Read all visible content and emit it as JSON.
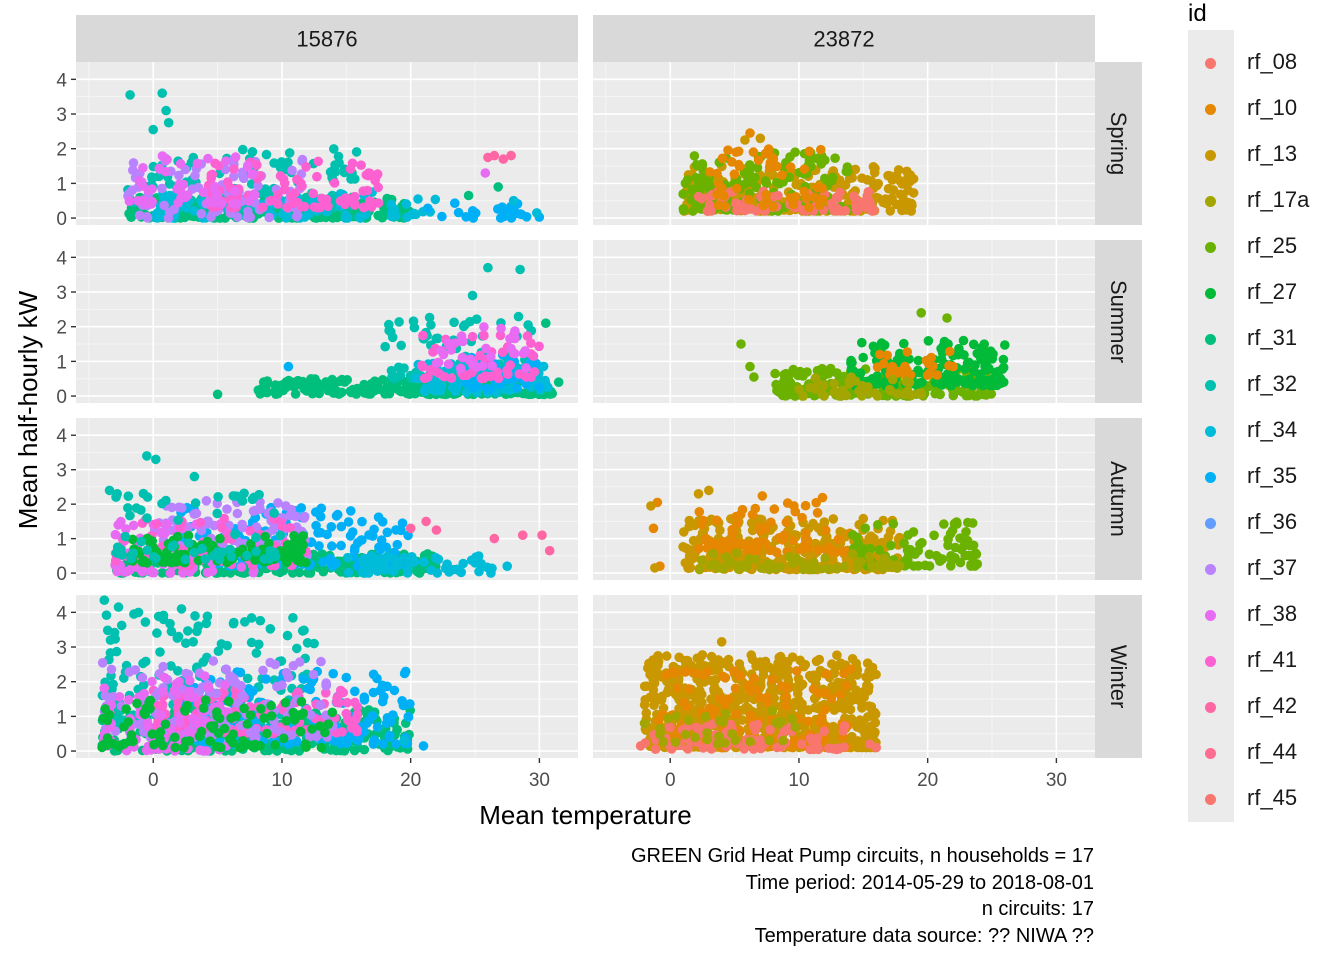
{
  "chart_data": {
    "type": "scatter",
    "xlabel": "Mean temperature",
    "ylabel": "Mean half-hourly kW",
    "xlim": [
      -6,
      33
    ],
    "ylim": [
      -0.2,
      4.5
    ],
    "x_ticks": [
      0,
      10,
      20,
      30
    ],
    "x_tick_labels": [
      "0",
      "10",
      "20",
      "30"
    ],
    "y_ticks": [
      0,
      1,
      2,
      3,
      4
    ],
    "y_tick_labels": [
      "0",
      "1",
      "2",
      "3",
      "4"
    ],
    "grid": true,
    "legend_position": "right",
    "facet_columns": [
      "15876",
      "23872"
    ],
    "facet_rows": [
      "Spring",
      "Summer",
      "Autumn",
      "Winter"
    ],
    "legend": {
      "title": "id",
      "entries": [
        {
          "label": "rf_08",
          "color": "#F8766D"
        },
        {
          "label": "rf_10",
          "color": "#E58700"
        },
        {
          "label": "rf_13",
          "color": "#C99800"
        },
        {
          "label": "rf_17a",
          "color": "#A3A500"
        },
        {
          "label": "rf_25",
          "color": "#6BB100"
        },
        {
          "label": "rf_27",
          "color": "#00BA38"
        },
        {
          "label": "rf_31",
          "color": "#00BF7D"
        },
        {
          "label": "rf_32",
          "color": "#00C0AF"
        },
        {
          "label": "rf_34",
          "color": "#00BCD8"
        },
        {
          "label": "rf_35",
          "color": "#00B0F6"
        },
        {
          "label": "rf_36",
          "color": "#619CFF"
        },
        {
          "label": "rf_37",
          "color": "#B983FF"
        },
        {
          "label": "rf_38",
          "color": "#E76BF3"
        },
        {
          "label": "rf_41",
          "color": "#FD61D1"
        },
        {
          "label": "rf_42",
          "color": "#FF67A4"
        },
        {
          "label": "rf_44",
          "color": "#FF6C91"
        },
        {
          "label": "rf_45",
          "color": "#F8766D"
        }
      ]
    },
    "panels": [
      {
        "column": "15876",
        "row": "Spring",
        "clusters": [
          {
            "color": "#00BF7D",
            "x": [
              -2,
              20
            ],
            "y": [
              0,
              0.6
            ],
            "n": 260
          },
          {
            "color": "#00C0AF",
            "x": [
              -2,
              16
            ],
            "y": [
              0.3,
              2.0
            ],
            "n": 110
          },
          {
            "color": "#00BCD8",
            "x": [
              0,
              22
            ],
            "y": [
              0,
              0.8
            ],
            "n": 80
          },
          {
            "color": "#B983FF",
            "x": [
              -2,
              12
            ],
            "y": [
              0,
              1.8
            ],
            "n": 90
          },
          {
            "color": "#FD61D1",
            "x": [
              4,
              18
            ],
            "y": [
              0.3,
              1.7
            ],
            "n": 90
          },
          {
            "color": "#E76BF3",
            "x": [
              -2,
              8
            ],
            "y": [
              0.4,
              1.8
            ],
            "n": 50
          },
          {
            "color": "#00B0F6",
            "x": [
              20,
              30
            ],
            "y": [
              0,
              0.5
            ],
            "n": 25
          }
        ],
        "points": [
          {
            "x": -1.8,
            "y": 3.55,
            "c": "#00C0AF"
          },
          {
            "x": 0.7,
            "y": 3.6,
            "c": "#00C0AF"
          },
          {
            "x": 1.0,
            "y": 3.1,
            "c": "#00C0AF"
          },
          {
            "x": 1.2,
            "y": 2.75,
            "c": "#00C0AF"
          },
          {
            "x": 0.0,
            "y": 2.55,
            "c": "#00C0AF"
          },
          {
            "x": 26.0,
            "y": 1.75,
            "c": "#FF67A4"
          },
          {
            "x": 27.2,
            "y": 1.7,
            "c": "#FF67A4"
          },
          {
            "x": 27.8,
            "y": 1.8,
            "c": "#FF67A4"
          },
          {
            "x": 26.5,
            "y": 1.8,
            "c": "#FF67A4"
          },
          {
            "x": 25.8,
            "y": 1.3,
            "c": "#E76BF3"
          },
          {
            "x": 26.8,
            "y": 0.9,
            "c": "#00BF7D"
          },
          {
            "x": 28.0,
            "y": 0.5,
            "c": "#00BCD8"
          },
          {
            "x": 29.8,
            "y": 0.15,
            "c": "#00BCD8"
          },
          {
            "x": 24.5,
            "y": 0.65,
            "c": "#00BF7D"
          }
        ]
      },
      {
        "column": "23872",
        "row": "Spring",
        "clusters": [
          {
            "color": "#C99800",
            "x": [
              1,
              19
            ],
            "y": [
              0.2,
              1.5
            ],
            "n": 260
          },
          {
            "color": "#6BB100",
            "x": [
              1,
              14
            ],
            "y": [
              0.2,
              1.9
            ],
            "n": 130
          },
          {
            "color": "#F8766D",
            "x": [
              2,
              16
            ],
            "y": [
              0.2,
              0.8
            ],
            "n": 70
          },
          {
            "color": "#E58700",
            "x": [
              3,
              12
            ],
            "y": [
              0.3,
              2.0
            ],
            "n": 50
          }
        ],
        "points": [
          {
            "x": 6.2,
            "y": 2.45,
            "c": "#E58700"
          },
          {
            "x": 5.8,
            "y": 2.25,
            "c": "#C99800"
          },
          {
            "x": 7.0,
            "y": 2.3,
            "c": "#C99800"
          },
          {
            "x": 18.5,
            "y": 0.45,
            "c": "#C99800"
          }
        ]
      },
      {
        "column": "15876",
        "row": "Summer",
        "clusters": [
          {
            "color": "#00BF7D",
            "x": [
              8,
              31
            ],
            "y": [
              0.05,
              0.5
            ],
            "n": 260
          },
          {
            "color": "#00C0AF",
            "x": [
              18,
              30
            ],
            "y": [
              0.5,
              2.3
            ],
            "n": 80
          },
          {
            "color": "#00BCD8",
            "x": [
              20,
              31
            ],
            "y": [
              0.1,
              1.0
            ],
            "n": 70
          },
          {
            "color": "#00B0F6",
            "x": [
              24,
              30
            ],
            "y": [
              0.2,
              1.2
            ],
            "n": 40
          },
          {
            "color": "#FD61D1",
            "x": [
              20,
              30
            ],
            "y": [
              0.5,
              1.8
            ],
            "n": 50
          },
          {
            "color": "#E76BF3",
            "x": [
              22,
              29
            ],
            "y": [
              0.8,
              2.0
            ],
            "n": 30
          }
        ],
        "points": [
          {
            "x": 5.0,
            "y": 0.05,
            "c": "#00BF7D"
          },
          {
            "x": 10.5,
            "y": 0.85,
            "c": "#00B0F6"
          },
          {
            "x": 26.0,
            "y": 3.7,
            "c": "#00C0AF"
          },
          {
            "x": 28.5,
            "y": 3.65,
            "c": "#00C0AF"
          },
          {
            "x": 24.8,
            "y": 2.9,
            "c": "#00C0AF"
          },
          {
            "x": 30.5,
            "y": 2.1,
            "c": "#00BF7D"
          },
          {
            "x": 31.5,
            "y": 0.4,
            "c": "#00BF7D"
          }
        ]
      },
      {
        "column": "23872",
        "row": "Summer",
        "clusters": [
          {
            "color": "#6BB100",
            "x": [
              8,
              25
            ],
            "y": [
              0.0,
              0.8
            ],
            "n": 200
          },
          {
            "color": "#00BA38",
            "x": [
              14,
              26
            ],
            "y": [
              0.3,
              1.6
            ],
            "n": 170
          },
          {
            "color": "#E58700",
            "x": [
              16,
              22
            ],
            "y": [
              0.6,
              1.3
            ],
            "n": 25
          },
          {
            "color": "#A3A500",
            "x": [
              10,
              20
            ],
            "y": [
              0.0,
              0.6
            ],
            "n": 40
          }
        ],
        "points": [
          {
            "x": 5.5,
            "y": 1.5,
            "c": "#6BB100"
          },
          {
            "x": 6.2,
            "y": 0.85,
            "c": "#6BB100"
          },
          {
            "x": 6.5,
            "y": 0.55,
            "c": "#6BB100"
          },
          {
            "x": 19.5,
            "y": 2.4,
            "c": "#6BB100"
          },
          {
            "x": 21.5,
            "y": 2.25,
            "c": "#6BB100"
          }
        ]
      },
      {
        "column": "15876",
        "row": "Autumn",
        "clusters": [
          {
            "color": "#00BF7D",
            "x": [
              -3,
              22
            ],
            "y": [
              0,
              0.6
            ],
            "n": 260
          },
          {
            "color": "#00B0F6",
            "x": [
              2,
              20
            ],
            "y": [
              0.2,
              1.9
            ],
            "n": 160
          },
          {
            "color": "#B983FF",
            "x": [
              0,
              12
            ],
            "y": [
              0.5,
              2.1
            ],
            "n": 130
          },
          {
            "color": "#E76BF3",
            "x": [
              -3,
              8
            ],
            "y": [
              0,
              1.5
            ],
            "n": 70
          },
          {
            "color": "#FD61D1",
            "x": [
              -3,
              12
            ],
            "y": [
              0.2,
              1.6
            ],
            "n": 70
          },
          {
            "color": "#00BA38",
            "x": [
              -2,
              12
            ],
            "y": [
              0.3,
              1.1
            ],
            "n": 100
          },
          {
            "color": "#00C0AF",
            "x": [
              -3,
              10
            ],
            "y": [
              0.4,
              2.4
            ],
            "n": 60
          },
          {
            "color": "#00BCD8",
            "x": [
              15,
              27
            ],
            "y": [
              0,
              0.5
            ],
            "n": 50
          }
        ],
        "points": [
          {
            "x": -3.4,
            "y": 2.4,
            "c": "#00C0AF"
          },
          {
            "x": -2.8,
            "y": 2.3,
            "c": "#00C0AF"
          },
          {
            "x": -0.5,
            "y": 3.4,
            "c": "#00C0AF"
          },
          {
            "x": 0.2,
            "y": 3.3,
            "c": "#00C0AF"
          },
          {
            "x": 3.2,
            "y": 2.8,
            "c": "#00C0AF"
          },
          {
            "x": 21.2,
            "y": 1.5,
            "c": "#FF67A4"
          },
          {
            "x": 22.0,
            "y": 1.25,
            "c": "#FF67A4"
          },
          {
            "x": 20.0,
            "y": 1.3,
            "c": "#FF67A4"
          },
          {
            "x": 26.5,
            "y": 1.0,
            "c": "#FF67A4"
          },
          {
            "x": 28.7,
            "y": 1.1,
            "c": "#FF67A4"
          },
          {
            "x": 30.2,
            "y": 1.1,
            "c": "#FF67A4"
          },
          {
            "x": 30.8,
            "y": 0.65,
            "c": "#FF67A4"
          },
          {
            "x": 25.0,
            "y": 0.3,
            "c": "#00BCD8"
          },
          {
            "x": 27.5,
            "y": 0.2,
            "c": "#00BCD8"
          }
        ]
      },
      {
        "column": "23872",
        "row": "Autumn",
        "clusters": [
          {
            "color": "#C99800",
            "x": [
              1,
              18
            ],
            "y": [
              0.1,
              1.6
            ],
            "n": 300
          },
          {
            "color": "#E58700",
            "x": [
              2,
              14
            ],
            "y": [
              0.6,
              2.3
            ],
            "n": 80
          },
          {
            "color": "#6BB100",
            "x": [
              14,
              24
            ],
            "y": [
              0.2,
              1.5
            ],
            "n": 80
          },
          {
            "color": "#A3A500",
            "x": [
              2,
              18
            ],
            "y": [
              0.1,
              0.6
            ],
            "n": 60
          }
        ],
        "points": [
          {
            "x": -1.0,
            "y": 2.05,
            "c": "#E58700"
          },
          {
            "x": -1.5,
            "y": 1.95,
            "c": "#C99800"
          },
          {
            "x": -1.3,
            "y": 1.3,
            "c": "#E58700"
          },
          {
            "x": -0.8,
            "y": 0.2,
            "c": "#E58700"
          },
          {
            "x": -1.2,
            "y": 0.15,
            "c": "#C99800"
          },
          {
            "x": 2.2,
            "y": 2.3,
            "c": "#C99800"
          },
          {
            "x": 3.0,
            "y": 2.4,
            "c": "#C99800"
          },
          {
            "x": 23.5,
            "y": 1.45,
            "c": "#6BB100"
          }
        ]
      },
      {
        "column": "15876",
        "row": "Winter",
        "clusters": [
          {
            "color": "#00BF7D",
            "x": [
              -4,
              20
            ],
            "y": [
              0,
              1.2
            ],
            "n": 280
          },
          {
            "color": "#00C0AF",
            "x": [
              -4,
              12
            ],
            "y": [
              0.8,
              4.0
            ],
            "n": 150
          },
          {
            "color": "#00B0F6",
            "x": [
              2,
              20
            ],
            "y": [
              0.2,
              2.3
            ],
            "n": 170
          },
          {
            "color": "#FD61D1",
            "x": [
              0,
              16
            ],
            "y": [
              0.5,
              1.8
            ],
            "n": 140
          },
          {
            "color": "#B983FF",
            "x": [
              -4,
              14
            ],
            "y": [
              0.4,
              2.6
            ],
            "n": 120
          },
          {
            "color": "#E76BF3",
            "x": [
              -4,
              6
            ],
            "y": [
              0,
              2.2
            ],
            "n": 80
          },
          {
            "color": "#00BA38",
            "x": [
              -4,
              14
            ],
            "y": [
              0.1,
              1.5
            ],
            "n": 100
          }
        ],
        "points": [
          {
            "x": -3.8,
            "y": 4.35,
            "c": "#00C0AF"
          },
          {
            "x": -2.7,
            "y": 4.15,
            "c": "#00C0AF"
          },
          {
            "x": -1.5,
            "y": 3.95,
            "c": "#00C0AF"
          },
          {
            "x": 2.2,
            "y": 4.1,
            "c": "#00C0AF"
          },
          {
            "x": 0.8,
            "y": 3.8,
            "c": "#00C0AF"
          },
          {
            "x": 3.5,
            "y": 3.6,
            "c": "#00C0AF"
          },
          {
            "x": 12.5,
            "y": 3.1,
            "c": "#00C0AF"
          },
          {
            "x": 21.0,
            "y": 0.15,
            "c": "#00B0F6"
          },
          {
            "x": 19.5,
            "y": 0.3,
            "c": "#00BCD8"
          }
        ]
      },
      {
        "column": "23872",
        "row": "Winter",
        "clusters": [
          {
            "color": "#C99800",
            "x": [
              -2,
              16
            ],
            "y": [
              0.1,
              2.8
            ],
            "n": 700
          },
          {
            "color": "#E58700",
            "x": [
              -1,
              14
            ],
            "y": [
              0.1,
              2.4
            ],
            "n": 120
          },
          {
            "color": "#F8766D",
            "x": [
              -2,
              14
            ],
            "y": [
              0.05,
              0.8
            ],
            "n": 80
          },
          {
            "color": "#A3A500",
            "x": [
              -1,
              10
            ],
            "y": [
              0.2,
              1.4
            ],
            "n": 30
          }
        ],
        "points": [
          {
            "x": 4.0,
            "y": 3.15,
            "c": "#C99800"
          },
          {
            "x": -2.3,
            "y": 0.15,
            "c": "#F8766D"
          },
          {
            "x": -2.0,
            "y": 0.8,
            "c": "#A3A500"
          },
          {
            "x": 15.5,
            "y": 0.2,
            "c": "#F8766D"
          },
          {
            "x": 16.0,
            "y": 0.1,
            "c": "#F8766D"
          }
        ]
      }
    ]
  },
  "caption": {
    "line1": "GREEN Grid Heat Pump circuits, n households = 17",
    "line2": "Time period: 2014-05-29 to 2018-08-01",
    "line3": "n circuits: 17",
    "line4": "Temperature data source: ?? NIWA ??"
  }
}
